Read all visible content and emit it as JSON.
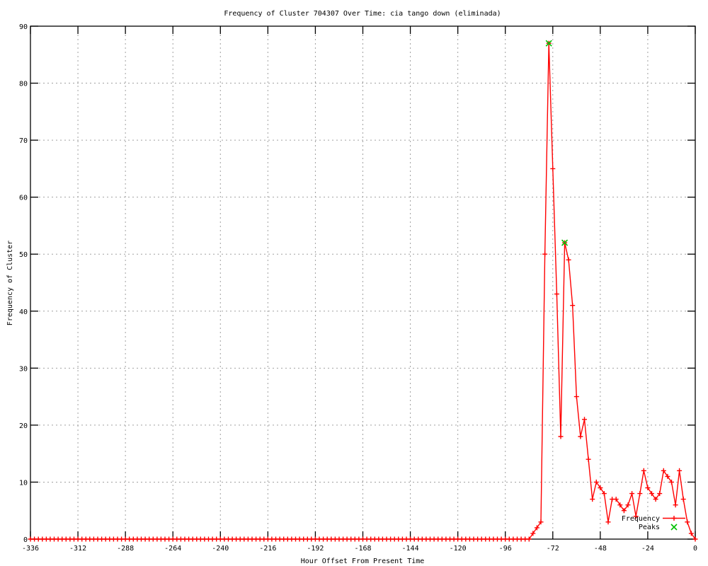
{
  "chart_data": {
    "type": "line",
    "title": "Frequency of Cluster 704307 Over Time: cia tango down (eliminada)",
    "xlabel": "Hour Offset From Present Time",
    "ylabel": "Frequency of Cluster",
    "xlim": [
      -336,
      0
    ],
    "ylim": [
      0,
      90
    ],
    "xticks": [
      -336,
      -312,
      -288,
      -264,
      -240,
      -216,
      -192,
      -168,
      -144,
      -120,
      -96,
      -72,
      -48,
      -24,
      0
    ],
    "yticks": [
      0,
      10,
      20,
      30,
      40,
      50,
      60,
      70,
      80,
      90
    ],
    "grid": true,
    "legend_position": "bottom-right",
    "x_start": -336,
    "x_step": 2,
    "series": [
      {
        "name": "Frequency",
        "color": "#ff0000",
        "marker": "plus",
        "values": [
          0,
          0,
          0,
          0,
          0,
          0,
          0,
          0,
          0,
          0,
          0,
          0,
          0,
          0,
          0,
          0,
          0,
          0,
          0,
          0,
          0,
          0,
          0,
          0,
          0,
          0,
          0,
          0,
          0,
          0,
          0,
          0,
          0,
          0,
          0,
          0,
          0,
          0,
          0,
          0,
          0,
          0,
          0,
          0,
          0,
          0,
          0,
          0,
          0,
          0,
          0,
          0,
          0,
          0,
          0,
          0,
          0,
          0,
          0,
          0,
          0,
          0,
          0,
          0,
          0,
          0,
          0,
          0,
          0,
          0,
          0,
          0,
          0,
          0,
          0,
          0,
          0,
          0,
          0,
          0,
          0,
          0,
          0,
          0,
          0,
          0,
          0,
          0,
          0,
          0,
          0,
          0,
          0,
          0,
          0,
          0,
          0,
          0,
          0,
          0,
          0,
          0,
          0,
          0,
          0,
          0,
          0,
          0,
          0,
          0,
          0,
          0,
          0,
          0,
          0,
          0,
          0,
          0,
          0,
          0,
          0,
          0,
          0,
          0,
          0,
          0,
          0,
          1,
          2,
          3,
          50,
          87,
          65,
          43,
          18,
          52,
          49,
          41,
          25,
          18,
          21,
          14,
          7,
          10,
          9,
          8,
          3,
          7,
          7,
          6,
          5,
          6,
          8,
          4,
          8,
          12,
          9,
          8,
          7,
          8,
          12,
          11,
          10,
          6,
          12,
          7,
          3,
          1,
          0
        ]
      },
      {
        "name": "Peaks",
        "color": "#00c000",
        "marker": "cross",
        "points": [
          [
            -74,
            87
          ],
          [
            -66,
            52
          ]
        ]
      }
    ]
  },
  "colors": {
    "line_red": "#ff0000",
    "peak_green": "#00c000",
    "grid_gray": "#a0a0a0",
    "border_black": "#000000",
    "background": "#ffffff"
  }
}
